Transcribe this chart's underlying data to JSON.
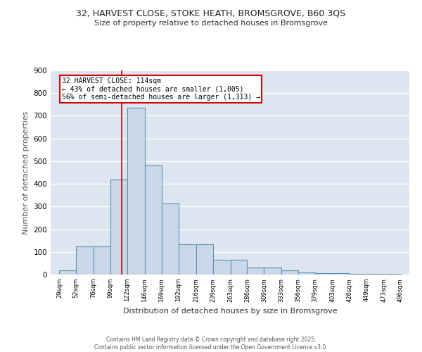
{
  "title_line1": "32, HARVEST CLOSE, STOKE HEATH, BROMSGROVE, B60 3QS",
  "title_line2": "Size of property relative to detached houses in Bromsgrove",
  "xlabel": "Distribution of detached houses by size in Bromsgrove",
  "ylabel": "Number of detached properties",
  "bar_edges": [
    29,
    52,
    76,
    99,
    122,
    146,
    169,
    192,
    216,
    239,
    263,
    286,
    309,
    333,
    356,
    379,
    403,
    426,
    449,
    473,
    496
  ],
  "bar_heights": [
    20,
    125,
    125,
    420,
    735,
    480,
    315,
    135,
    135,
    65,
    65,
    30,
    30,
    20,
    10,
    5,
    5,
    3,
    2,
    2
  ],
  "bar_color": "#c8d8e8",
  "bar_edge_color": "#6090b0",
  "bar_linewidth": 0.8,
  "red_line_x": 114,
  "red_line_color": "#cc0000",
  "annotation_text": "32 HARVEST CLOSE: 114sqm\n← 43% of detached houses are smaller (1,005)\n56% of semi-detached houses are larger (1,313) →",
  "annotation_box_color": "white",
  "annotation_box_edge": "#cc0000",
  "ylim": [
    0,
    900
  ],
  "xlim_left": 17,
  "xlim_right": 508,
  "yticks": [
    0,
    100,
    200,
    300,
    400,
    500,
    600,
    700,
    800,
    900
  ],
  "background_color": "#dde5f0",
  "grid_color": "white",
  "footer_text": "Contains HM Land Registry data © Crown copyright and database right 2025.\nContains public sector information licensed under the Open Government Licence v3.0.",
  "tick_labels": [
    "29sqm",
    "52sqm",
    "76sqm",
    "99sqm",
    "122sqm",
    "146sqm",
    "169sqm",
    "192sqm",
    "216sqm",
    "239sqm",
    "263sqm",
    "286sqm",
    "309sqm",
    "333sqm",
    "356sqm",
    "379sqm",
    "403sqm",
    "426sqm",
    "449sqm",
    "473sqm",
    "496sqm"
  ]
}
